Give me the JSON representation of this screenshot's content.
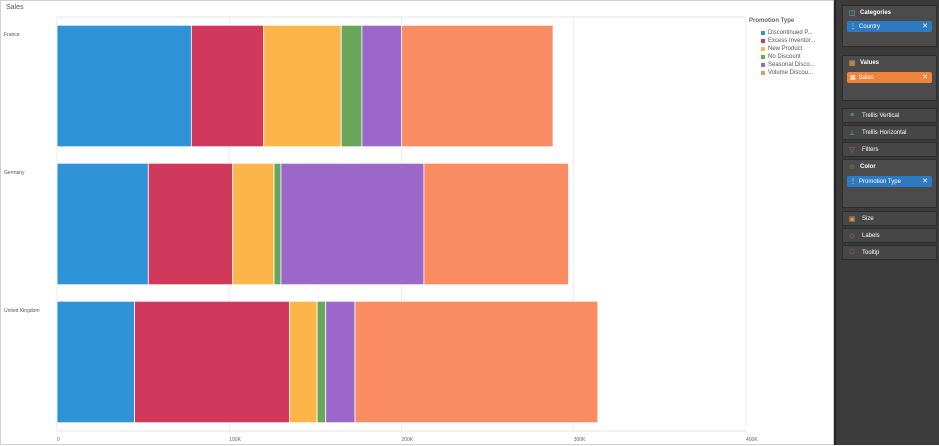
{
  "title": "Sales",
  "legend": {
    "title": "Promotion Type",
    "items": [
      {
        "label": "Discontinued P...",
        "color": "#2e93d6"
      },
      {
        "label": "Excess Inventor...",
        "color": "#d0395b"
      },
      {
        "label": "New Product",
        "color": "#fdb54a"
      },
      {
        "label": "No Discount",
        "color": "#67a75a"
      },
      {
        "label": "Seasonal Disco...",
        "color": "#9b67c9"
      },
      {
        "label": "Volume Discou...",
        "color": "#f98c62"
      }
    ]
  },
  "chart_data": {
    "type": "bar",
    "orientation": "horizontal",
    "stacked": true,
    "categories": [
      "France",
      "Germany",
      "United Kingdom"
    ],
    "series": [
      {
        "name": "Discontinued P...",
        "color": "#2e93d6",
        "values": [
          78000,
          53000,
          45000
        ]
      },
      {
        "name": "Excess Inventor...",
        "color": "#d0395b",
        "values": [
          42000,
          49000,
          90000
        ]
      },
      {
        "name": "New Product",
        "color": "#fdb54a",
        "values": [
          45000,
          24000,
          16000
        ]
      },
      {
        "name": "No Discount",
        "color": "#67a75a",
        "values": [
          12000,
          4000,
          5000
        ]
      },
      {
        "name": "Seasonal Disco...",
        "color": "#9b67c9",
        "values": [
          23000,
          83000,
          17000
        ]
      },
      {
        "name": "Volume Discou...",
        "color": "#f98c62",
        "values": [
          88000,
          84000,
          141000
        ]
      }
    ],
    "xlim": [
      0,
      400000
    ],
    "xticks": [
      0,
      100000,
      200000,
      300000,
      400000
    ],
    "xtick_labels": [
      "0",
      "100K",
      "200K",
      "300K",
      "400K"
    ],
    "grid": true,
    "legend_position": "top-right"
  },
  "panel": {
    "categories": {
      "label": "Categories",
      "chip": "Country",
      "icon": "categories-icon"
    },
    "values": {
      "label": "Values",
      "chip": "Sales",
      "icon": "bar-chart-icon"
    },
    "trellis_vertical": {
      "label": "Trellis Vertical"
    },
    "trellis_horizontal": {
      "label": "Trellis Horizontal"
    },
    "filters": {
      "label": "Filters"
    },
    "color": {
      "label": "Color",
      "chip": "Promotion Type"
    },
    "size": {
      "label": "Size"
    },
    "labels": {
      "label": "Labels"
    },
    "tooltip": {
      "label": "Tooltip"
    }
  },
  "colors": {
    "panel_bg": "#3b3b3b",
    "chip_blue": "#2d7ac0",
    "chip_orange": "#f0843c"
  }
}
